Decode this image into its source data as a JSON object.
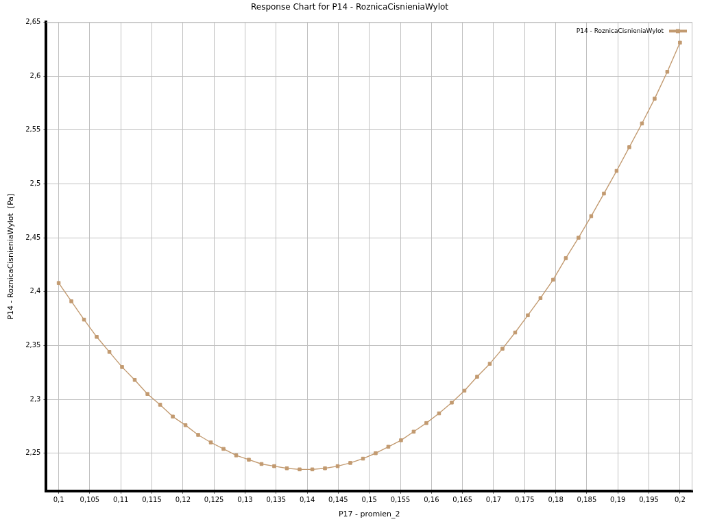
{
  "chart_data": {
    "type": "line",
    "title": "Response Chart for P14 - RoznicaCisnieniaWylot",
    "xlabel": "P17 - promien_2",
    "ylabel": "P14 - RoznicaCisnieniaWylot  [Pa]",
    "x": [
      0.1,
      0.10204,
      0.10408,
      0.10612,
      0.10816,
      0.1102,
      0.11224,
      0.11429,
      0.11633,
      0.11837,
      0.12041,
      0.12245,
      0.12449,
      0.12653,
      0.12857,
      0.13061,
      0.13265,
      0.13469,
      0.13673,
      0.13878,
      0.14082,
      0.14286,
      0.1449,
      0.14694,
      0.14898,
      0.15102,
      0.15306,
      0.1551,
      0.15714,
      0.15918,
      0.16122,
      0.16327,
      0.16531,
      0.16735,
      0.16939,
      0.17143,
      0.17347,
      0.17551,
      0.17755,
      0.17959,
      0.18163,
      0.18367,
      0.18571,
      0.18776,
      0.1898,
      0.19184,
      0.19388,
      0.19592,
      0.19796,
      0.2
    ],
    "series": [
      {
        "name": "P14 - RoznicaCisnieniaWylot",
        "color": "#c29a70",
        "values": [
          2.408,
          2.391,
          2.374,
          2.358,
          2.344,
          2.33,
          2.318,
          2.305,
          2.295,
          2.284,
          2.276,
          2.267,
          2.26,
          2.254,
          2.248,
          2.244,
          2.24,
          2.238,
          2.236,
          2.235,
          2.235,
          2.236,
          2.238,
          2.241,
          2.245,
          2.25,
          2.256,
          2.262,
          2.27,
          2.278,
          2.287,
          2.297,
          2.308,
          2.321,
          2.333,
          2.347,
          2.362,
          2.378,
          2.394,
          2.411,
          2.431,
          2.45,
          2.47,
          2.491,
          2.512,
          2.534,
          2.556,
          2.579,
          2.604,
          2.631
        ]
      }
    ],
    "xlim": [
      0.098,
      0.202
    ],
    "xticks": [
      {
        "value": 0.1,
        "label": "0,1"
      },
      {
        "value": 0.105,
        "label": "0,105"
      },
      {
        "value": 0.11,
        "label": "0,11"
      },
      {
        "value": 0.115,
        "label": "0,115"
      },
      {
        "value": 0.12,
        "label": "0,12"
      },
      {
        "value": 0.125,
        "label": "0,125"
      },
      {
        "value": 0.13,
        "label": "0,13"
      },
      {
        "value": 0.135,
        "label": "0,135"
      },
      {
        "value": 0.14,
        "label": "0,14"
      },
      {
        "value": 0.145,
        "label": "0,145"
      },
      {
        "value": 0.15,
        "label": "0,15"
      },
      {
        "value": 0.155,
        "label": "0,155"
      },
      {
        "value": 0.16,
        "label": "0,16"
      },
      {
        "value": 0.165,
        "label": "0,165"
      },
      {
        "value": 0.17,
        "label": "0,17"
      },
      {
        "value": 0.175,
        "label": "0,175"
      },
      {
        "value": 0.18,
        "label": "0,18"
      },
      {
        "value": 0.185,
        "label": "0,185"
      },
      {
        "value": 0.19,
        "label": "0,19"
      },
      {
        "value": 0.195,
        "label": "0,195"
      },
      {
        "value": 0.2,
        "label": "0,2"
      }
    ],
    "ylim": [
      2.215,
      2.65
    ],
    "yticks": [
      {
        "value": 2.25,
        "label": "2,25"
      },
      {
        "value": 2.3,
        "label": "2,3"
      },
      {
        "value": 2.35,
        "label": "2,35"
      },
      {
        "value": 2.4,
        "label": "2,4"
      },
      {
        "value": 2.45,
        "label": "2,45"
      },
      {
        "value": 2.5,
        "label": "2,5"
      },
      {
        "value": 2.55,
        "label": "2,55"
      },
      {
        "value": 2.6,
        "label": "2,6"
      },
      {
        "value": 2.65,
        "label": "2,65"
      }
    ],
    "grid": true,
    "legend": "top right",
    "marker": "square",
    "line_style": "solid"
  }
}
